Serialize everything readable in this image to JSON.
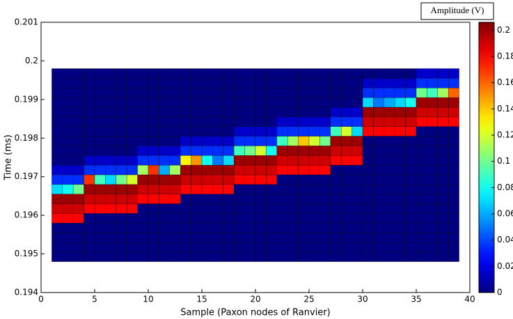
{
  "chart_data": {
    "type": "heatmap",
    "x_label": "Sample (Paxon nodes of Ranvier)",
    "y_label": "Time (ms)",
    "xlim": [
      0,
      40
    ],
    "xticks": [
      0,
      5,
      10,
      15,
      20,
      25,
      30,
      35,
      40
    ],
    "ylim": [
      0.194,
      0.201
    ],
    "yticks": [
      0.194,
      0.195,
      0.196,
      0.197,
      0.198,
      0.199,
      0.2,
      0.201
    ],
    "xbins": [
      1,
      2,
      3,
      4,
      5,
      6,
      7,
      8,
      9,
      10,
      11,
      12,
      13,
      14,
      15,
      16,
      17,
      18,
      19,
      20,
      21,
      22,
      23,
      24,
      25,
      26,
      27,
      28,
      29,
      30,
      31,
      32,
      33,
      34,
      35,
      36,
      37,
      38,
      39
    ],
    "ybins": [
      0.1948,
      0.19505,
      0.1953,
      0.19555,
      0.1958,
      0.19605,
      0.1963,
      0.19655,
      0.1968,
      0.19705,
      0.1973,
      0.19755,
      0.1978,
      0.19805,
      0.1983,
      0.19855,
      0.1988,
      0.19905,
      0.1993,
      0.19955,
      0.1998
    ],
    "z": [
      [
        0,
        0,
        0,
        0,
        0,
        0,
        0,
        0,
        0,
        0,
        0,
        0,
        0,
        0,
        0,
        0,
        0,
        0,
        0,
        0,
        0,
        0,
        0,
        0,
        0,
        0,
        0,
        0,
        0,
        0,
        0,
        0,
        0,
        0,
        0,
        0,
        0,
        0
      ],
      [
        0,
        0,
        0,
        0,
        0,
        0,
        0,
        0,
        0,
        0,
        0,
        0,
        0,
        0,
        0,
        0,
        0,
        0,
        0,
        0,
        0,
        0,
        0,
        0,
        0,
        0,
        0,
        0,
        0,
        0,
        0,
        0,
        0,
        0,
        0,
        0,
        0,
        0
      ],
      [
        0,
        0,
        0,
        0,
        0,
        0,
        0,
        0,
        0,
        0,
        0,
        0,
        0,
        0,
        0,
        0,
        0,
        0,
        0,
        0,
        0,
        0,
        0,
        0,
        0,
        0,
        0,
        0,
        0,
        0,
        0,
        0,
        0,
        0,
        0,
        0,
        0,
        0
      ],
      [
        0,
        0,
        0,
        0,
        0,
        0,
        0,
        0,
        0,
        0,
        0,
        0,
        0,
        0,
        0,
        0,
        0,
        0,
        0,
        0,
        0,
        0,
        0,
        0,
        0,
        0,
        0,
        0,
        0,
        0,
        0,
        0,
        0,
        0,
        0,
        0,
        0,
        0
      ],
      [
        0.18,
        0.18,
        0.18,
        0,
        0,
        0,
        0,
        0,
        0,
        0,
        0,
        0,
        0,
        0,
        0,
        0,
        0,
        0,
        0,
        0,
        0,
        0,
        0,
        0,
        0,
        0,
        0,
        0,
        0,
        0,
        0,
        0,
        0,
        0,
        0,
        0,
        0,
        0
      ],
      [
        0.19,
        0.19,
        0.19,
        0.18,
        0.18,
        0.18,
        0.18,
        0.18,
        0,
        0,
        0,
        0,
        0,
        0,
        0,
        0,
        0,
        0,
        0,
        0,
        0,
        0,
        0,
        0,
        0,
        0,
        0,
        0,
        0,
        0,
        0,
        0,
        0,
        0,
        0,
        0,
        0,
        0
      ],
      [
        0.2,
        0.2,
        0.2,
        0.19,
        0.19,
        0.19,
        0.19,
        0.19,
        0.18,
        0.18,
        0.18,
        0.18,
        0,
        0,
        0,
        0,
        0,
        0,
        0,
        0,
        0,
        0,
        0,
        0,
        0,
        0,
        0,
        0,
        0,
        0,
        0,
        0,
        0,
        0,
        0,
        0,
        0,
        0
      ],
      [
        0.07,
        0.08,
        0.1,
        0.2,
        0.2,
        0.2,
        0.2,
        0.2,
        0.19,
        0.19,
        0.19,
        0.19,
        0.18,
        0.18,
        0.18,
        0.18,
        0.18,
        0,
        0,
        0,
        0,
        0,
        0,
        0,
        0,
        0,
        0,
        0,
        0,
        0,
        0,
        0,
        0,
        0,
        0,
        0,
        0,
        0
      ],
      [
        0.035,
        0.035,
        0.035,
        0.17,
        0.09,
        0.07,
        0.1,
        0.12,
        0.2,
        0.2,
        0.2,
        0.2,
        0.19,
        0.19,
        0.19,
        0.19,
        0.19,
        0.18,
        0.18,
        0.18,
        0.18,
        0,
        0,
        0,
        0,
        0,
        0,
        0,
        0,
        0,
        0,
        0,
        0,
        0,
        0,
        0,
        0,
        0
      ],
      [
        0.015,
        0.015,
        0.015,
        0.035,
        0.035,
        0.035,
        0.035,
        0.035,
        0.11,
        0.17,
        0.06,
        0.11,
        0.2,
        0.2,
        0.2,
        0.2,
        0.2,
        0.19,
        0.19,
        0.19,
        0.19,
        0.18,
        0.18,
        0.18,
        0.18,
        0.18,
        0,
        0,
        0,
        0,
        0,
        0,
        0,
        0,
        0,
        0,
        0,
        0
      ],
      [
        0,
        0,
        0,
        0.015,
        0.015,
        0.015,
        0.015,
        0.015,
        0.035,
        0.035,
        0.035,
        0.035,
        0.13,
        0.15,
        0.08,
        0.05,
        0.07,
        0.2,
        0.2,
        0.2,
        0.2,
        0.19,
        0.19,
        0.19,
        0.19,
        0.19,
        0.18,
        0.18,
        0.18,
        0,
        0,
        0,
        0,
        0,
        0,
        0,
        0,
        0
      ],
      [
        0,
        0,
        0,
        0,
        0,
        0,
        0,
        0,
        0.015,
        0.015,
        0.015,
        0.015,
        0.035,
        0.035,
        0.035,
        0.035,
        0.035,
        0.09,
        0.1,
        0.12,
        0.08,
        0.2,
        0.2,
        0.2,
        0.2,
        0.2,
        0.19,
        0.19,
        0.19,
        0,
        0,
        0,
        0,
        0,
        0,
        0,
        0,
        0
      ],
      [
        0,
        0,
        0,
        0,
        0,
        0,
        0,
        0,
        0,
        0,
        0,
        0,
        0.015,
        0.015,
        0.015,
        0.015,
        0.015,
        0.035,
        0.035,
        0.035,
        0.035,
        0.09,
        0.11,
        0.14,
        0.12,
        0.1,
        0.2,
        0.2,
        0.2,
        0,
        0,
        0,
        0,
        0,
        0,
        0,
        0,
        0
      ],
      [
        0,
        0,
        0,
        0,
        0,
        0,
        0,
        0,
        0,
        0,
        0,
        0,
        0,
        0,
        0,
        0,
        0,
        0.015,
        0.015,
        0.015,
        0.015,
        0.035,
        0.035,
        0.035,
        0.035,
        0.035,
        0.09,
        0.12,
        0.07,
        0.18,
        0.18,
        0.18,
        0.18,
        0.18,
        0,
        0,
        0,
        0
      ],
      [
        0,
        0,
        0,
        0,
        0,
        0,
        0,
        0,
        0,
        0,
        0,
        0,
        0,
        0,
        0,
        0,
        0,
        0,
        0,
        0,
        0,
        0.015,
        0.015,
        0.015,
        0.015,
        0.015,
        0.035,
        0.035,
        0.035,
        0.19,
        0.19,
        0.19,
        0.19,
        0.19,
        0.18,
        0.18,
        0.18,
        0.18
      ],
      [
        0,
        0,
        0,
        0,
        0,
        0,
        0,
        0,
        0,
        0,
        0,
        0,
        0,
        0,
        0,
        0,
        0,
        0,
        0,
        0,
        0,
        0,
        0,
        0,
        0,
        0,
        0.015,
        0.015,
        0.015,
        0.2,
        0.2,
        0.2,
        0.2,
        0.2,
        0.19,
        0.19,
        0.19,
        0.19
      ],
      [
        0,
        0,
        0,
        0,
        0,
        0,
        0,
        0,
        0,
        0,
        0,
        0,
        0,
        0,
        0,
        0,
        0,
        0,
        0,
        0,
        0,
        0,
        0,
        0,
        0,
        0,
        0,
        0,
        0,
        0.07,
        0.05,
        0.06,
        0.07,
        0.08,
        0.2,
        0.2,
        0.2,
        0.2
      ],
      [
        0,
        0,
        0,
        0,
        0,
        0,
        0,
        0,
        0,
        0,
        0,
        0,
        0,
        0,
        0,
        0,
        0,
        0,
        0,
        0,
        0,
        0,
        0,
        0,
        0,
        0,
        0,
        0,
        0,
        0.035,
        0.035,
        0.035,
        0.035,
        0.035,
        0.1,
        0.09,
        0.11,
        0.16
      ],
      [
        0,
        0,
        0,
        0,
        0,
        0,
        0,
        0,
        0,
        0,
        0,
        0,
        0,
        0,
        0,
        0,
        0,
        0,
        0,
        0,
        0,
        0,
        0,
        0,
        0,
        0,
        0,
        0,
        0,
        0.015,
        0.015,
        0.015,
        0.015,
        0.015,
        0.035,
        0.035,
        0.035,
        0.035
      ],
      [
        0,
        0,
        0,
        0,
        0,
        0,
        0,
        0,
        0,
        0,
        0,
        0,
        0,
        0,
        0,
        0,
        0,
        0,
        0,
        0,
        0,
        0,
        0,
        0,
        0,
        0,
        0,
        0,
        0,
        0,
        0,
        0,
        0,
        0,
        0.015,
        0.015,
        0.015,
        0.015
      ]
    ],
    "colorbar": {
      "label": "Amplitude (V)",
      "colormap": "jet",
      "lim": [
        0,
        0.206
      ],
      "ticks": [
        0,
        0.02,
        0.04,
        0.06,
        0.08,
        0.1,
        0.12,
        0.14,
        0.16,
        0.18,
        0.2
      ]
    }
  }
}
